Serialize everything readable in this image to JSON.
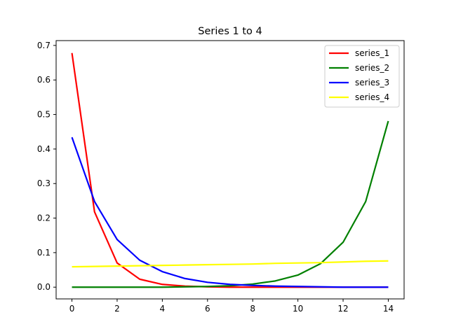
{
  "chart_data": {
    "type": "line",
    "title": "Series 1 to 4",
    "xlabel": "",
    "ylabel": "",
    "xlim": [
      -0.7,
      14.7
    ],
    "ylim": [
      -0.034,
      0.714
    ],
    "xticks": [
      0,
      2,
      4,
      6,
      8,
      10,
      12,
      14
    ],
    "yticks": [
      0.0,
      0.1,
      0.2,
      0.3,
      0.4,
      0.5,
      0.6,
      0.7
    ],
    "ytick_labels": [
      "0.0",
      "0.1",
      "0.2",
      "0.3",
      "0.4",
      "0.5",
      "0.6",
      "0.7"
    ],
    "grid": false,
    "legend_position": "top-right",
    "x": [
      0,
      1,
      2,
      3,
      4,
      5,
      6,
      7,
      8,
      9,
      10,
      11,
      12,
      13,
      14
    ],
    "series": [
      {
        "name": "series_1",
        "color": "#ff0000",
        "values": [
          0.678,
          0.218,
          0.07,
          0.023,
          0.008,
          0.003,
          0.001,
          0.0,
          0.0,
          0.0,
          0.0,
          0.0,
          0.0,
          0.0,
          0.0
        ]
      },
      {
        "name": "series_2",
        "color": "#008000",
        "values": [
          0.0,
          0.0,
          0.0,
          0.0,
          0.0,
          0.001,
          0.002,
          0.004,
          0.009,
          0.018,
          0.035,
          0.068,
          0.13,
          0.248,
          0.481
        ]
      },
      {
        "name": "series_3",
        "color": "#0000ff",
        "values": [
          0.434,
          0.248,
          0.138,
          0.078,
          0.045,
          0.025,
          0.014,
          0.008,
          0.005,
          0.003,
          0.002,
          0.001,
          0.0,
          0.0,
          0.0
        ]
      },
      {
        "name": "series_4",
        "color": "#ffff00",
        "values": [
          0.059,
          0.06,
          0.061,
          0.062,
          0.063,
          0.064,
          0.065,
          0.066,
          0.067,
          0.069,
          0.07,
          0.071,
          0.073,
          0.075,
          0.076
        ]
      }
    ]
  }
}
